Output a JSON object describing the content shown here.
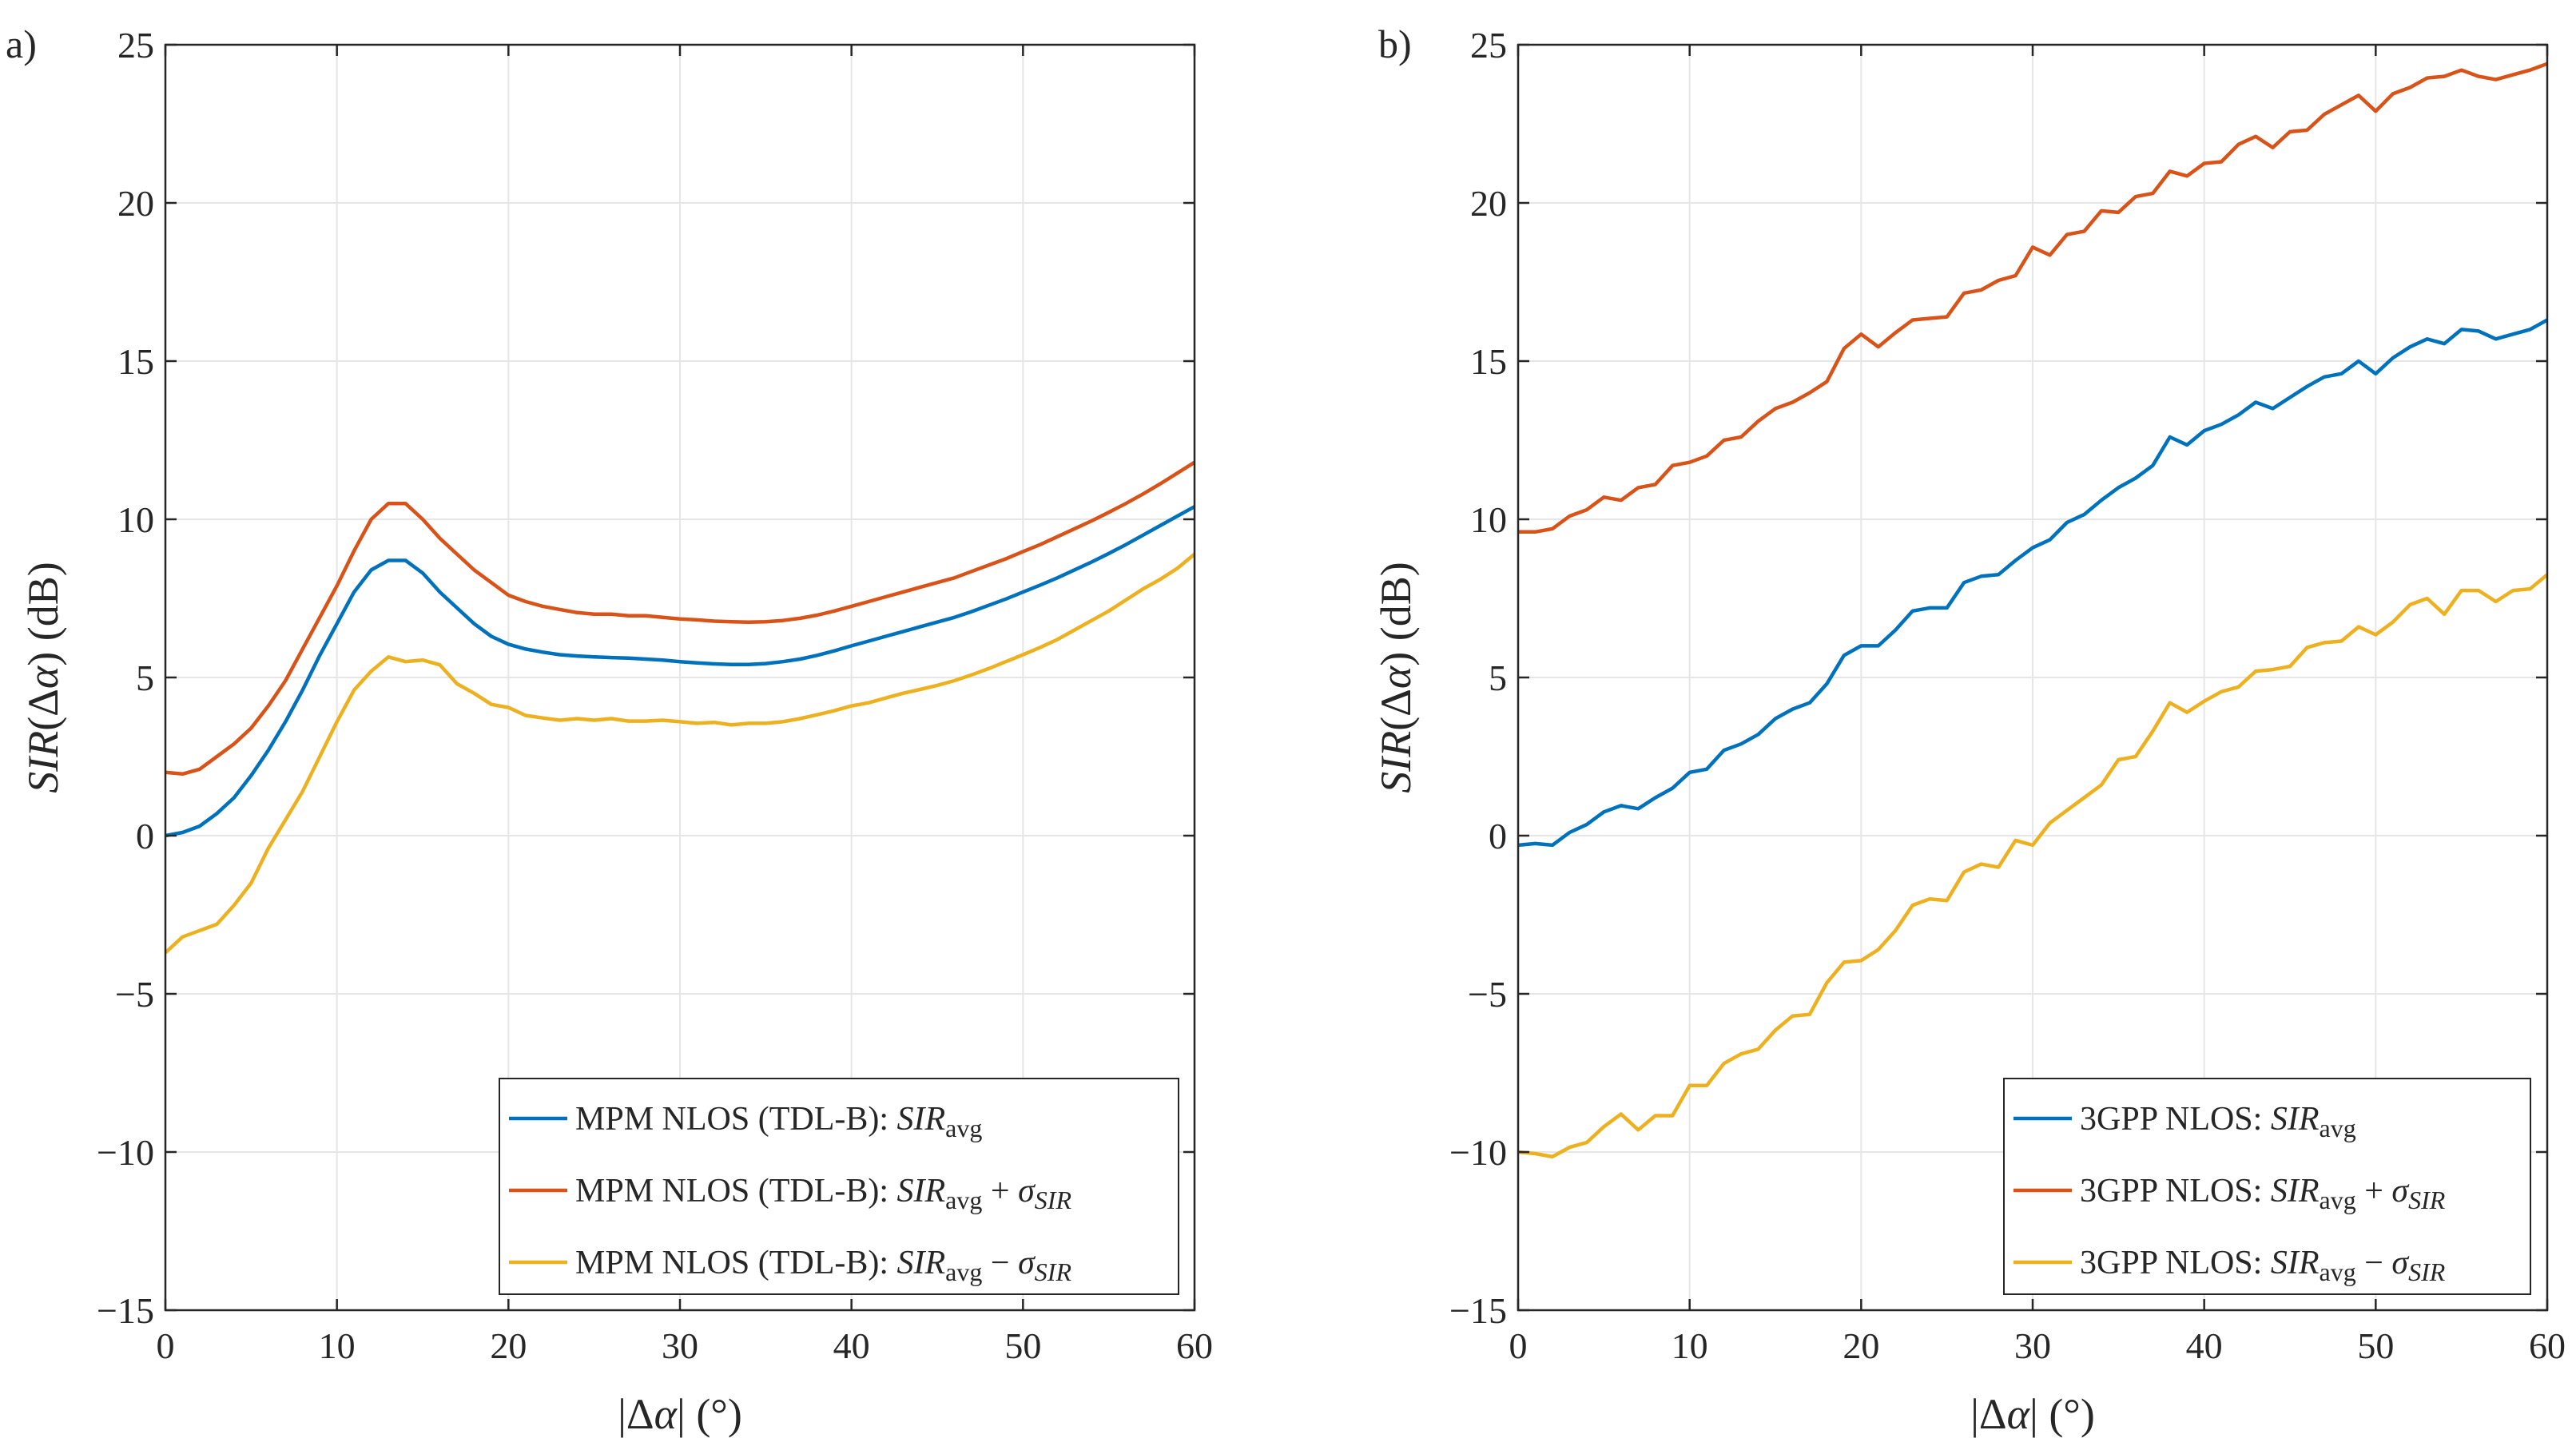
{
  "chart_data": [
    {
      "type": "line",
      "panel_label": "a)",
      "xlabel": "|Δα|  (°)",
      "ylabel": "SIR(Δα)  (dB)",
      "xlim": [
        0,
        60
      ],
      "ylim": [
        -15,
        25
      ],
      "xticks": [
        0,
        10,
        20,
        30,
        40,
        50,
        60
      ],
      "yticks": [
        -15,
        -10,
        -5,
        0,
        5,
        10,
        15,
        20,
        25
      ],
      "grid": true,
      "legend_position": "bottom-right",
      "series": [
        {
          "name": "MPM NLOS (TDL-B): SIR_avg",
          "legend": {
            "prefix": "MPM NLOS (TDL-B): ",
            "sir": "SIR",
            "sub": "avg",
            "op": "",
            "sigma_sub": ""
          },
          "color": "#0072BD",
          "x": [
            0,
            1,
            2,
            3,
            4,
            5,
            6,
            7,
            8,
            9,
            10,
            11,
            12,
            13,
            14,
            15,
            16,
            17,
            18,
            19,
            20,
            21,
            22,
            23,
            24,
            25,
            26,
            27,
            28,
            29,
            30,
            31,
            32,
            33,
            34,
            35,
            36,
            37,
            38,
            39,
            40,
            41,
            42,
            43,
            44,
            45,
            46,
            47,
            48,
            49,
            50,
            51,
            52,
            53,
            54,
            55,
            56,
            57,
            58,
            59,
            60
          ],
          "y": [
            0.0,
            0.1,
            0.3,
            0.7,
            1.2,
            1.9,
            2.7,
            3.6,
            4.6,
            5.7,
            6.7,
            7.7,
            8.4,
            8.7,
            8.7,
            8.3,
            7.7,
            7.2,
            6.7,
            6.3,
            6.05,
            5.9,
            5.8,
            5.72,
            5.68,
            5.65,
            5.63,
            5.61,
            5.58,
            5.55,
            5.5,
            5.46,
            5.43,
            5.41,
            5.41,
            5.44,
            5.5,
            5.58,
            5.7,
            5.84,
            6.0,
            6.15,
            6.3,
            6.45,
            6.6,
            6.75,
            6.9,
            7.08,
            7.28,
            7.48,
            7.7,
            7.92,
            8.15,
            8.4,
            8.65,
            8.92,
            9.2,
            9.5,
            9.8,
            10.1,
            10.4
          ]
        },
        {
          "name": "MPM NLOS (TDL-B): SIR_avg + σ_SIR",
          "legend": {
            "prefix": "MPM NLOS (TDL-B): ",
            "sir": "SIR",
            "sub": "avg",
            "op": "+",
            "sigma_sub": "SIR"
          },
          "color": "#D95319",
          "x": [
            0,
            1,
            2,
            3,
            4,
            5,
            6,
            7,
            8,
            9,
            10,
            11,
            12,
            13,
            14,
            15,
            16,
            17,
            18,
            19,
            20,
            21,
            22,
            23,
            24,
            25,
            26,
            27,
            28,
            29,
            30,
            31,
            32,
            33,
            34,
            35,
            36,
            37,
            38,
            39,
            40,
            41,
            42,
            43,
            44,
            45,
            46,
            47,
            48,
            49,
            50,
            51,
            52,
            53,
            54,
            55,
            56,
            57,
            58,
            59,
            60
          ],
          "y": [
            2.0,
            1.95,
            2.1,
            2.5,
            2.9,
            3.4,
            4.1,
            4.9,
            5.9,
            6.9,
            7.9,
            9.0,
            10.0,
            10.5,
            10.5,
            10.0,
            9.4,
            8.9,
            8.4,
            8.0,
            7.6,
            7.4,
            7.25,
            7.15,
            7.05,
            7.0,
            7.0,
            6.95,
            6.95,
            6.9,
            6.85,
            6.82,
            6.78,
            6.76,
            6.75,
            6.76,
            6.8,
            6.87,
            6.97,
            7.1,
            7.25,
            7.4,
            7.55,
            7.7,
            7.85,
            8.0,
            8.15,
            8.35,
            8.55,
            8.75,
            8.98,
            9.2,
            9.45,
            9.7,
            9.95,
            10.22,
            10.5,
            10.8,
            11.12,
            11.46,
            11.8
          ]
        },
        {
          "name": "MPM NLOS (TDL-B): SIR_avg − σ_SIR",
          "legend": {
            "prefix": "MPM NLOS (TDL-B): ",
            "sir": "SIR",
            "sub": "avg",
            "op": "−",
            "sigma_sub": "SIR"
          },
          "color": "#EDB120",
          "x": [
            0,
            1,
            2,
            3,
            4,
            5,
            6,
            7,
            8,
            9,
            10,
            11,
            12,
            13,
            14,
            15,
            16,
            17,
            18,
            19,
            20,
            21,
            22,
            23,
            24,
            25,
            26,
            27,
            28,
            29,
            30,
            31,
            32,
            33,
            34,
            35,
            36,
            37,
            38,
            39,
            40,
            41,
            42,
            43,
            44,
            45,
            46,
            47,
            48,
            49,
            50,
            51,
            52,
            53,
            54,
            55,
            56,
            57,
            58,
            59,
            60
          ],
          "y": [
            -3.7,
            -3.2,
            -3.0,
            -2.8,
            -2.2,
            -1.5,
            -0.4,
            0.5,
            1.4,
            2.5,
            3.6,
            4.6,
            5.2,
            5.65,
            5.5,
            5.55,
            5.4,
            4.8,
            4.5,
            4.15,
            4.05,
            3.8,
            3.72,
            3.65,
            3.7,
            3.65,
            3.7,
            3.62,
            3.62,
            3.65,
            3.6,
            3.55,
            3.58,
            3.5,
            3.55,
            3.55,
            3.6,
            3.7,
            3.82,
            3.95,
            4.1,
            4.2,
            4.35,
            4.5,
            4.62,
            4.75,
            4.9,
            5.08,
            5.28,
            5.5,
            5.72,
            5.95,
            6.2,
            6.5,
            6.8,
            7.1,
            7.45,
            7.8,
            8.1,
            8.45,
            8.9
          ]
        }
      ]
    },
    {
      "type": "line",
      "panel_label": "b)",
      "xlabel": "|Δα|  (°)",
      "ylabel": "SIR(Δα)  (dB)",
      "xlim": [
        0,
        60
      ],
      "ylim": [
        -15,
        25
      ],
      "xticks": [
        0,
        10,
        20,
        30,
        40,
        50,
        60
      ],
      "yticks": [
        -15,
        -10,
        -5,
        0,
        5,
        10,
        15,
        20,
        25
      ],
      "grid": true,
      "legend_position": "bottom-right",
      "series": [
        {
          "name": "3GPP NLOS: SIR_avg",
          "legend": {
            "prefix": "3GPP NLOS: ",
            "sir": "SIR",
            "sub": "avg",
            "op": "",
            "sigma_sub": ""
          },
          "color": "#0072BD",
          "x": [
            0,
            1,
            2,
            3,
            4,
            5,
            6,
            7,
            8,
            9,
            10,
            11,
            12,
            13,
            14,
            15,
            16,
            17,
            18,
            19,
            20,
            21,
            22,
            23,
            24,
            25,
            26,
            27,
            28,
            29,
            30,
            31,
            32,
            33,
            34,
            35,
            36,
            37,
            38,
            39,
            40,
            41,
            42,
            43,
            44,
            45,
            46,
            47,
            48,
            49,
            50,
            51,
            52,
            53,
            54,
            55,
            56,
            57,
            58,
            59,
            60
          ],
          "y": [
            -0.3,
            -0.25,
            -0.3,
            0.1,
            0.35,
            0.75,
            0.95,
            0.85,
            1.2,
            1.5,
            2.0,
            2.1,
            2.7,
            2.9,
            3.2,
            3.7,
            4.0,
            4.2,
            4.8,
            5.7,
            6.0,
            6.0,
            6.5,
            7.1,
            7.2,
            7.2,
            8.0,
            8.2,
            8.25,
            8.7,
            9.1,
            9.35,
            9.9,
            10.15,
            10.6,
            11.0,
            11.3,
            11.7,
            12.6,
            12.35,
            12.8,
            13.0,
            13.3,
            13.7,
            13.5,
            13.85,
            14.2,
            14.5,
            14.6,
            15.0,
            14.6,
            15.1,
            15.45,
            15.7,
            15.55,
            16.0,
            15.95,
            15.7,
            15.85,
            16.0,
            16.3
          ]
        },
        {
          "name": "3GPP NLOS: SIR_avg + σ_SIR",
          "legend": {
            "prefix": "3GPP NLOS: ",
            "sir": "SIR",
            "sub": "avg",
            "op": "+",
            "sigma_sub": "SIR"
          },
          "color": "#D95319",
          "x": [
            0,
            1,
            2,
            3,
            4,
            5,
            6,
            7,
            8,
            9,
            10,
            11,
            12,
            13,
            14,
            15,
            16,
            17,
            18,
            19,
            20,
            21,
            22,
            23,
            24,
            25,
            26,
            27,
            28,
            29,
            30,
            31,
            32,
            33,
            34,
            35,
            36,
            37,
            38,
            39,
            40,
            41,
            42,
            43,
            44,
            45,
            46,
            47,
            48,
            49,
            50,
            51,
            52,
            53,
            54,
            55,
            56,
            57,
            58,
            59,
            60
          ],
          "y": [
            9.6,
            9.6,
            9.7,
            10.1,
            10.3,
            10.7,
            10.6,
            11.0,
            11.1,
            11.7,
            11.8,
            12.0,
            12.5,
            12.6,
            13.1,
            13.5,
            13.7,
            14.0,
            14.35,
            15.4,
            15.85,
            15.45,
            15.9,
            16.3,
            16.35,
            16.4,
            17.15,
            17.25,
            17.55,
            17.7,
            18.6,
            18.35,
            19.0,
            19.1,
            19.75,
            19.7,
            20.2,
            20.3,
            21.0,
            20.85,
            21.25,
            21.3,
            21.85,
            22.1,
            21.75,
            22.25,
            22.3,
            22.8,
            23.1,
            23.4,
            22.9,
            23.45,
            23.65,
            23.95,
            24.0,
            24.2,
            24.0,
            23.9,
            24.05,
            24.2,
            24.4
          ]
        },
        {
          "name": "3GPP NLOS: SIR_avg − σ_SIR",
          "legend": {
            "prefix": "3GPP NLOS: ",
            "sir": "SIR",
            "sub": "avg",
            "op": "−",
            "sigma_sub": "SIR"
          },
          "color": "#EDB120",
          "x": [
            0,
            1,
            2,
            3,
            4,
            5,
            6,
            7,
            8,
            9,
            10,
            11,
            12,
            13,
            14,
            15,
            16,
            17,
            18,
            19,
            20,
            21,
            22,
            23,
            24,
            25,
            26,
            27,
            28,
            29,
            30,
            31,
            32,
            33,
            34,
            35,
            36,
            37,
            38,
            39,
            40,
            41,
            42,
            43,
            44,
            45,
            46,
            47,
            48,
            49,
            50,
            51,
            52,
            53,
            54,
            55,
            56,
            57,
            58,
            59,
            60
          ],
          "y": [
            -10.0,
            -10.05,
            -10.15,
            -9.85,
            -9.7,
            -9.2,
            -8.8,
            -9.3,
            -8.85,
            -8.85,
            -7.9,
            -7.9,
            -7.2,
            -6.9,
            -6.75,
            -6.15,
            -5.7,
            -5.65,
            -4.65,
            -4.0,
            -3.95,
            -3.6,
            -3.0,
            -2.2,
            -2.0,
            -2.05,
            -1.15,
            -0.9,
            -1.0,
            -0.15,
            -0.3,
            0.4,
            0.8,
            1.2,
            1.6,
            2.4,
            2.5,
            3.3,
            4.2,
            3.9,
            4.25,
            4.55,
            4.7,
            5.2,
            5.25,
            5.35,
            5.95,
            6.1,
            6.15,
            6.6,
            6.35,
            6.75,
            7.3,
            7.5,
            7.0,
            7.75,
            7.75,
            7.4,
            7.75,
            7.8,
            8.25
          ]
        }
      ]
    }
  ]
}
